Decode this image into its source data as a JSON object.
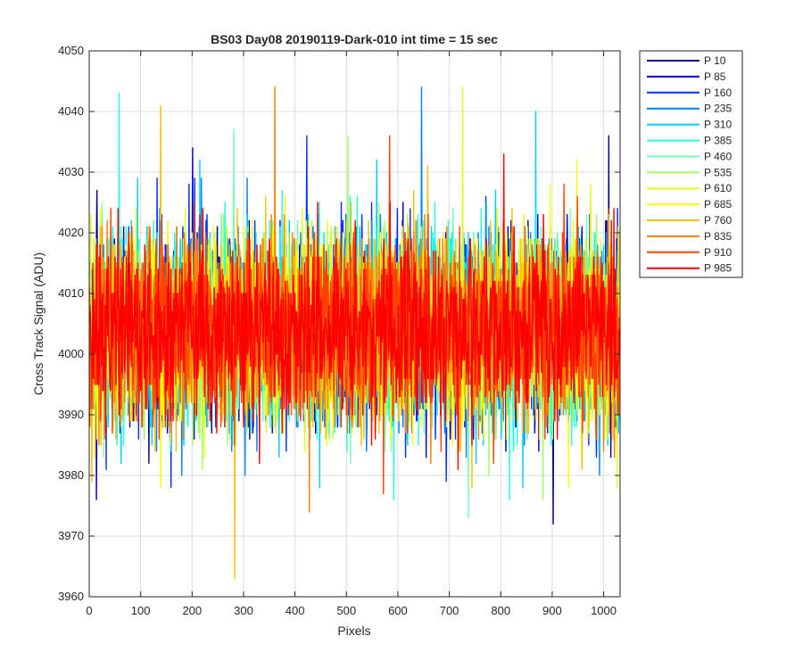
{
  "chart_data": {
    "type": "line",
    "title": "BS03 Day08 20190119-Dark-010 int time = 15 sec",
    "xlabel": "Pixels",
    "ylabel": "Cross Track Signal (ADU)",
    "xlim": [
      0,
      1032
    ],
    "ylim": [
      3960,
      4050
    ],
    "xticks": [
      0,
      100,
      200,
      300,
      400,
      500,
      600,
      700,
      800,
      900,
      1000
    ],
    "yticks": [
      3960,
      3970,
      3980,
      3990,
      4000,
      4010,
      4020,
      4030,
      4040,
      4050
    ],
    "grid": true,
    "legend_position": "outside-top-right",
    "n_points": 1032,
    "series": [
      {
        "name": "P 10",
        "color": "#00008F",
        "mean": 4004,
        "std": 7.5,
        "min": 3972,
        "max": 4036
      },
      {
        "name": "P 85",
        "color": "#0000DF",
        "mean": 4004,
        "std": 7.5,
        "min": 3976,
        "max": 4034
      },
      {
        "name": "P 160",
        "color": "#0030FF",
        "mean": 4004,
        "std": 7.5,
        "min": 3978,
        "max": 4036
      },
      {
        "name": "P 235",
        "color": "#0080FF",
        "mean": 4004,
        "std": 7.5,
        "min": 3980,
        "max": 4044
      },
      {
        "name": "P 310",
        "color": "#00CFFF",
        "mean": 4004,
        "std": 7.5,
        "min": 3978,
        "max": 4040
      },
      {
        "name": "P 385",
        "color": "#20FFDF",
        "mean": 4004,
        "std": 7.5,
        "min": 3976,
        "max": 4043
      },
      {
        "name": "P 460",
        "color": "#70FFAF",
        "mean": 4004,
        "std": 7.5,
        "min": 3973,
        "max": 4037
      },
      {
        "name": "P 535",
        "color": "#9FFF60",
        "mean": 4004,
        "std": 7.5,
        "min": 3976,
        "max": 4036
      },
      {
        "name": "P 610",
        "color": "#DFFF20",
        "mean": 4004,
        "std": 7.5,
        "min": 3978,
        "max": 4044
      },
      {
        "name": "P 685",
        "color": "#FFFF00",
        "mean": 4004,
        "std": 7.5,
        "min": 3978,
        "max": 4032
      },
      {
        "name": "P 760",
        "color": "#FFBF00",
        "mean": 4004,
        "std": 7.5,
        "min": 3963,
        "max": 4041
      },
      {
        "name": "P 835",
        "color": "#FF8000",
        "mean": 4004,
        "std": 7.5,
        "min": 3974,
        "max": 4044
      },
      {
        "name": "P 910",
        "color": "#FF4000",
        "mean": 4004,
        "std": 7.5,
        "min": 3977,
        "max": 4036
      },
      {
        "name": "P 985",
        "color": "#FF0000",
        "mean": 4004,
        "std": 7.0,
        "min": 3981,
        "max": 4033
      }
    ]
  }
}
